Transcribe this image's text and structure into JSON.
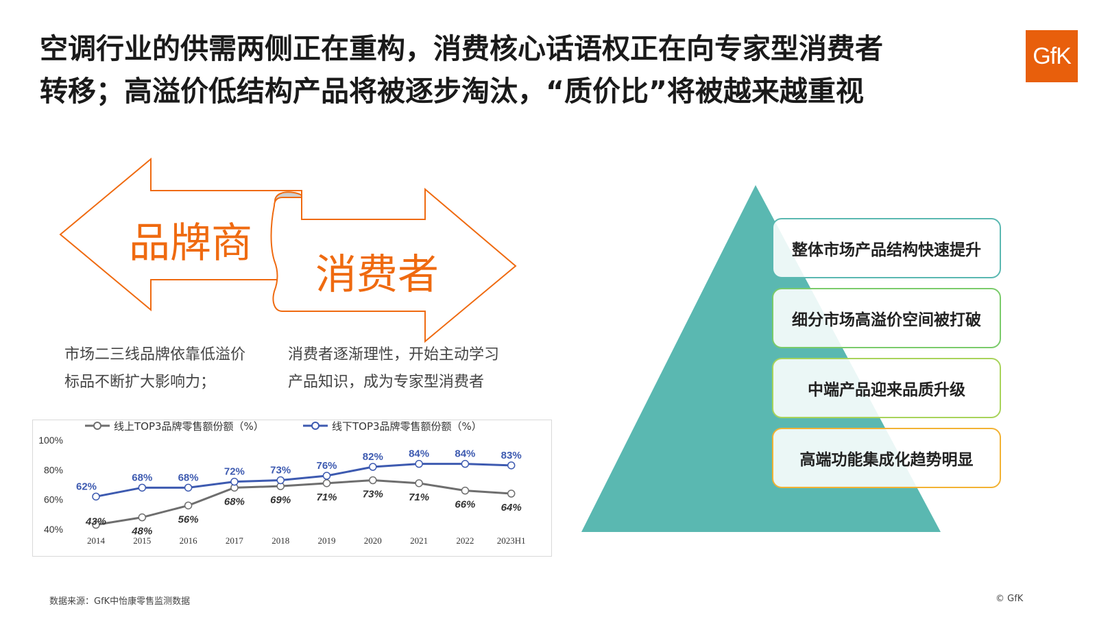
{
  "title": {
    "line1": "空调行业的供需两侧正在重构，消费核心话语权正在向专家型消费者",
    "line2": "转移；高溢价低结构产品将被逐步淘汰，“质价比”将被越来越重视"
  },
  "logo_text": "GfK",
  "arrows": {
    "left_label": "品牌商",
    "right_label": "消费者",
    "color": "#ef6a10"
  },
  "descriptions": {
    "left": [
      "市场二三线品牌依靠低溢价",
      "标品不断扩大影响力；"
    ],
    "right": [
      "消费者逐渐理性，开始主动学习",
      "产品知识，成为专家型消费者"
    ]
  },
  "pyramid": {
    "color": "#5ab8b1",
    "items": [
      {
        "label": "整体市场产品结构快速提升",
        "border": "#5ab8b1"
      },
      {
        "label": "细分市场高溢价空间被打破",
        "border": "#7acb6a"
      },
      {
        "label": "中端产品迎来品质升级",
        "border": "#a8d35a"
      },
      {
        "label": "高端功能集成化趋势明显",
        "border": "#f2b233"
      }
    ]
  },
  "chart_data": {
    "type": "line",
    "categories": [
      "2014",
      "2015",
      "2016",
      "2017",
      "2018",
      "2019",
      "2020",
      "2021",
      "2022",
      "2023H1"
    ],
    "series": [
      {
        "name": "线上TOP3品牌零售额份额（%）",
        "values": [
          43,
          48,
          56,
          68,
          69,
          71,
          73,
          71,
          66,
          64
        ],
        "color": "#6e6e6e",
        "labels": [
          "43%",
          "48%",
          "56%",
          "68%",
          "69%",
          "71%",
          "73%",
          "71%",
          "66%",
          "64%"
        ]
      },
      {
        "name": "线下TOP3品牌零售额份额（%）",
        "values": [
          62,
          68,
          68,
          72,
          73,
          76,
          82,
          84,
          84,
          83
        ],
        "color": "#3d5ab0",
        "labels": [
          "62%",
          "68%",
          "68%",
          "72%",
          "73%",
          "76%",
          "82%",
          "84%",
          "84%",
          "83%"
        ]
      }
    ],
    "yticks": [
      "40%",
      "60%",
      "80%",
      "100%"
    ],
    "ylim": [
      40,
      100
    ],
    "grid": false,
    "legend": "top"
  },
  "footer": {
    "source": "数据来源：GfK中怡康零售监测数据",
    "copyright": "© GfK"
  }
}
